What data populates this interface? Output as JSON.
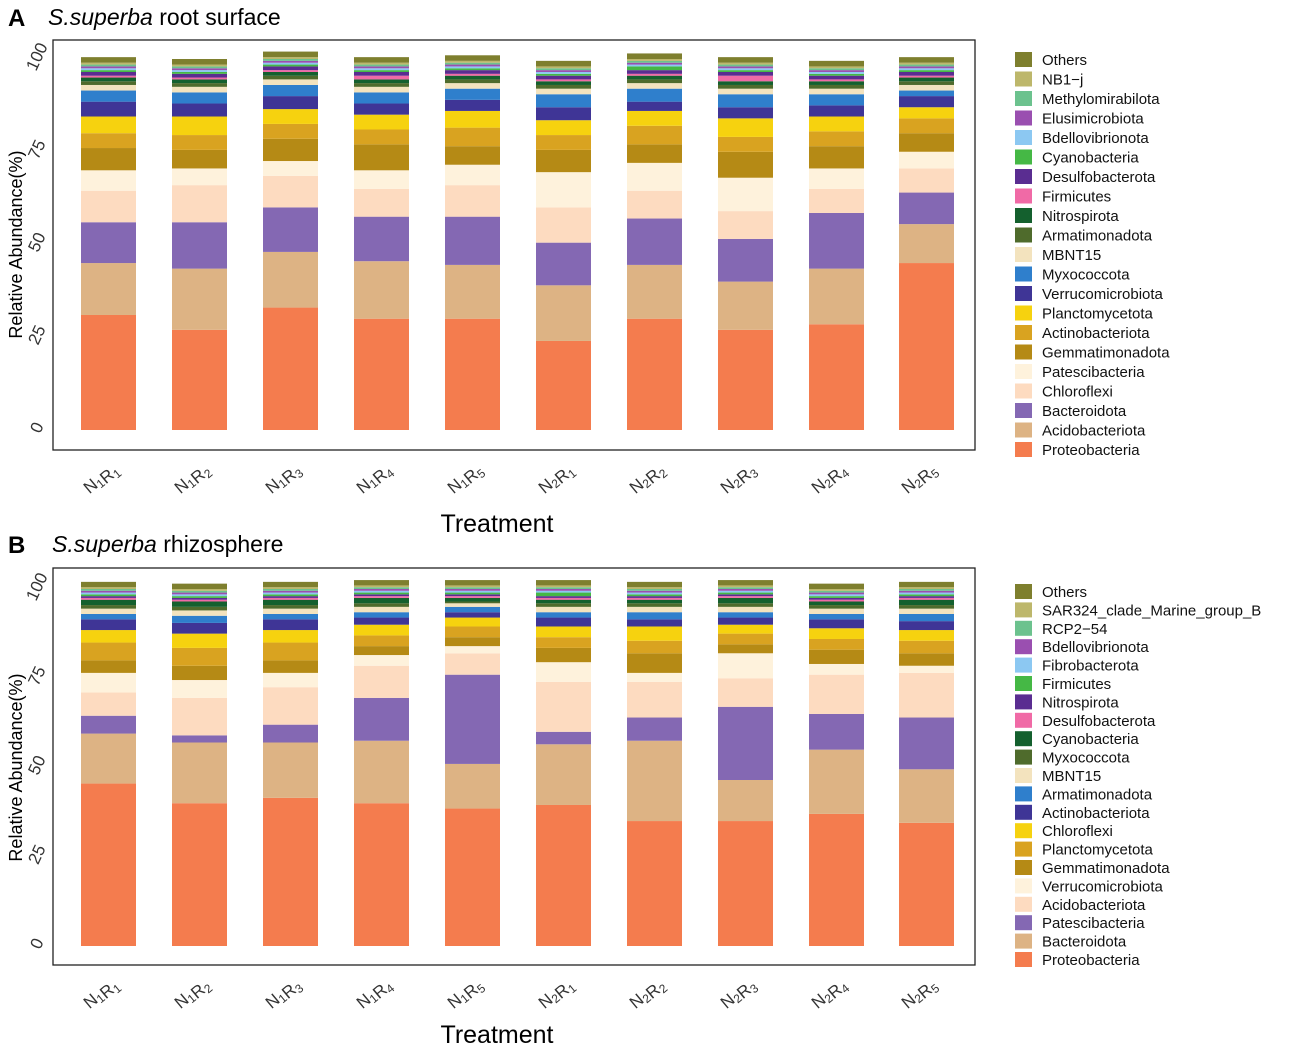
{
  "chart_data": [
    {
      "type": "bar",
      "stacked": true,
      "panel": "A",
      "title_italic": "S.superba",
      "title_rest": " root surface",
      "xlabel": "Treatment",
      "ylabel": "Relative Abundance(%)",
      "ylim": [
        0,
        100
      ],
      "yticks": [
        "0",
        "25",
        "50",
        "75",
        "100"
      ],
      "categories": [
        "N1R1",
        "N1R2",
        "N1R3",
        "N1R4",
        "N1R5",
        "N2R1",
        "N2R2",
        "N2R3",
        "N2R4",
        "N2R5"
      ],
      "series": [
        {
          "name": "Proteobacteria",
          "color": "#F47C4E",
          "values": [
            31,
            27,
            33,
            30,
            30,
            24,
            30,
            27,
            28.5,
            45
          ]
        },
        {
          "name": "Acidobacteriota",
          "color": "#DDB384",
          "values": [
            14,
            16.5,
            15,
            15.5,
            14.5,
            15,
            14.5,
            13,
            15,
            10.5
          ]
        },
        {
          "name": "Bacteroidota",
          "color": "#8468B3",
          "values": [
            11,
            12.5,
            12,
            12,
            13,
            11.5,
            12.5,
            11.5,
            15,
            8.5
          ]
        },
        {
          "name": "Chloroflexi",
          "color": "#FDDBC0",
          "values": [
            8.5,
            10,
            8.5,
            7.5,
            8.5,
            9.5,
            7.5,
            7.5,
            6.5,
            6.5
          ]
        },
        {
          "name": "Patescibacteria",
          "color": "#FEF2DC",
          "values": [
            5.5,
            4.5,
            4,
            5,
            5.5,
            9.5,
            7.5,
            9,
            5.5,
            4.5
          ]
        },
        {
          "name": "Gemmatimonadota",
          "color": "#B58A15",
          "values": [
            6,
            5,
            6,
            7,
            5,
            6,
            5,
            7,
            6,
            5
          ]
        },
        {
          "name": "Actinobacteriota",
          "color": "#D9A320",
          "values": [
            4,
            4,
            4,
            4,
            5,
            4,
            5,
            4,
            4,
            4
          ]
        },
        {
          "name": "Planctomycetota",
          "color": "#F6D20F",
          "values": [
            4.5,
            5,
            4,
            4,
            4.5,
            4,
            4,
            5,
            4,
            3
          ]
        },
        {
          "name": "Verrucomicrobiota",
          "color": "#3F3596",
          "values": [
            4,
            3.5,
            3.5,
            3,
            3,
            3.5,
            2.5,
            3,
            3,
            3
          ]
        },
        {
          "name": "Myxococcota",
          "color": "#2F7FCC",
          "values": [
            3,
            3,
            3,
            3,
            3,
            3.5,
            3.5,
            3.5,
            3,
            1.5
          ]
        },
        {
          "name": "MBNT15",
          "color": "#F3E3BE",
          "values": [
            1.5,
            1.5,
            1.5,
            1.5,
            1.5,
            1.5,
            1.5,
            1.5,
            1.5,
            1.5
          ]
        },
        {
          "name": "Armatimonadota",
          "color": "#4F6B2C",
          "values": [
            1,
            1,
            1,
            1,
            1,
            1,
            1,
            1,
            1,
            1
          ]
        },
        {
          "name": "Nitrospirota",
          "color": "#14602E",
          "values": [
            1,
            1,
            1,
            1,
            1,
            1,
            1,
            1,
            1,
            1
          ]
        },
        {
          "name": "Firmicutes",
          "color": "#F06AA6",
          "values": [
            0.5,
            0.5,
            0.5,
            1,
            0.5,
            0.5,
            0.5,
            1.5,
            0.5,
            0.5
          ]
        },
        {
          "name": "Desulfobacterota",
          "color": "#5A2D91",
          "values": [
            1,
            1,
            1,
            1,
            1,
            1,
            1,
            1,
            1,
            1
          ]
        },
        {
          "name": "Cyanobacteria",
          "color": "#45B845",
          "values": [
            0.5,
            0.5,
            0.5,
            0.5,
            0.5,
            0.5,
            1,
            0.5,
            0.5,
            0.5
          ]
        },
        {
          "name": "Bdellovibrionota",
          "color": "#8CC8F2",
          "values": [
            0.5,
            0.5,
            0.5,
            0.5,
            0.5,
            0.5,
            0.5,
            0.5,
            0.5,
            0.5
          ]
        },
        {
          "name": "Elusimicrobiota",
          "color": "#9A4FB0",
          "values": [
            0.5,
            0.5,
            0.5,
            0.5,
            0.5,
            0.5,
            0.5,
            0.5,
            0.5,
            0.5
          ]
        },
        {
          "name": "Methylomirabilota",
          "color": "#6CC28E",
          "values": [
            0.5,
            0.5,
            0.5,
            0.5,
            0.5,
            0.5,
            0.5,
            0.5,
            0.5,
            0.5
          ]
        },
        {
          "name": "NB1−j",
          "color": "#BDB76B",
          "values": [
            0.5,
            0.5,
            0.5,
            0.5,
            0.5,
            0.5,
            0.5,
            0.5,
            0.5,
            0.5
          ]
        },
        {
          "name": "Others",
          "color": "#7E7F2E",
          "values": [
            1.5,
            1.5,
            1.5,
            1.5,
            1.5,
            1.5,
            1.5,
            1.5,
            1.5,
            1.5
          ]
        }
      ]
    },
    {
      "type": "bar",
      "stacked": true,
      "panel": "B",
      "title_italic": "S.superba",
      "title_rest": " rhizosphere",
      "xlabel": "Treatment",
      "ylabel": "Relative Abundance(%)",
      "ylim": [
        0,
        100
      ],
      "yticks": [
        "0",
        "25",
        "50",
        "75",
        "100"
      ],
      "categories": [
        "N1R1",
        "N1R2",
        "N1R3",
        "N1R4",
        "N1R5",
        "N2R1",
        "N2R2",
        "N2R3",
        "N2R4",
        "N2R5"
      ],
      "series": [
        {
          "name": "Proteobacteria",
          "color": "#F47C4E",
          "values": [
            45.5,
            40,
            41.5,
            40,
            38.5,
            39.5,
            35,
            35,
            37,
            34.5
          ]
        },
        {
          "name": "Bacteroidota",
          "color": "#DDB384",
          "values": [
            14,
            17,
            15.5,
            17.5,
            12.5,
            17,
            22.5,
            11.5,
            18,
            15
          ]
        },
        {
          "name": "Patescibacteria",
          "color": "#8468B3",
          "values": [
            5,
            2,
            5,
            12,
            25,
            3.5,
            6.5,
            20.5,
            10,
            14.5
          ]
        },
        {
          "name": "Acidobacteriota",
          "color": "#FDDBC0",
          "values": [
            6.5,
            10.5,
            10.5,
            9,
            6,
            14,
            10,
            8,
            11,
            12.5
          ]
        },
        {
          "name": "Verrucomicrobiota",
          "color": "#FEF2DC",
          "values": [
            5.5,
            5,
            4,
            3,
            2,
            5.5,
            2.5,
            7,
            3,
            2
          ]
        },
        {
          "name": "Gemmatimonadota",
          "color": "#B58A15",
          "values": [
            3.5,
            4,
            3.5,
            2.5,
            2.5,
            4,
            5.5,
            2.5,
            4,
            3.5
          ]
        },
        {
          "name": "Planctomycetota",
          "color": "#D9A320",
          "values": [
            5,
            5,
            5,
            3,
            3,
            3,
            3.5,
            3,
            3,
            3.5
          ]
        },
        {
          "name": "Chloroflexi",
          "color": "#F6D20F",
          "values": [
            3.5,
            4,
            3.5,
            3,
            2.5,
            3,
            4,
            2.5,
            3,
            3
          ]
        },
        {
          "name": "Actinobacteriota",
          "color": "#3F3596",
          "values": [
            3,
            3,
            3,
            2,
            1.5,
            2.5,
            2,
            2,
            2.5,
            2.5
          ]
        },
        {
          "name": "Armatimonadota",
          "color": "#2F7FCC",
          "values": [
            1.5,
            2,
            1.5,
            1.5,
            1.5,
            1.5,
            2,
            1.5,
            1.5,
            2
          ]
        },
        {
          "name": "MBNT15",
          "color": "#F3E3BE",
          "values": [
            1.5,
            1.5,
            1.5,
            1.5,
            1,
            1.5,
            1.5,
            1.5,
            1.5,
            1.5
          ]
        },
        {
          "name": "Myxococcota",
          "color": "#4F6B2C",
          "values": [
            1,
            1,
            1,
            1,
            0.5,
            1,
            1,
            1,
            1,
            1
          ]
        },
        {
          "name": "Cyanobacteria",
          "color": "#14602E",
          "values": [
            1.5,
            1.5,
            1.5,
            1.5,
            1,
            1,
            1,
            1.5,
            1,
            1.5
          ]
        },
        {
          "name": "Desulfobacterota",
          "color": "#F06AA6",
          "values": [
            0.5,
            0.5,
            0.5,
            0.5,
            0.5,
            0.5,
            0.5,
            0.5,
            0.5,
            0.5
          ]
        },
        {
          "name": "Nitrospirota",
          "color": "#5A2D91",
          "values": [
            0.5,
            0.5,
            0.5,
            0.5,
            0.5,
            0.5,
            0.5,
            0.5,
            0.5,
            0.5
          ]
        },
        {
          "name": "Firmicutes",
          "color": "#45B845",
          "values": [
            0.5,
            0.5,
            0.5,
            0.5,
            0.5,
            1,
            0.5,
            0.5,
            0.5,
            0.5
          ]
        },
        {
          "name": "Fibrobacterota",
          "color": "#8CC8F2",
          "values": [
            0.5,
            0.5,
            0.5,
            0.5,
            0.5,
            0.5,
            0.5,
            0.5,
            0.5,
            0.5
          ]
        },
        {
          "name": "Bdellovibrionota",
          "color": "#9A4FB0",
          "values": [
            0.5,
            0.5,
            0.5,
            0.5,
            0.5,
            0.5,
            0.5,
            0.5,
            0.5,
            0.5
          ]
        },
        {
          "name": "RCP2−54",
          "color": "#6CC28E",
          "values": [
            0.5,
            0.5,
            0.5,
            0.5,
            0.5,
            0.5,
            0.5,
            0.5,
            0.5,
            0.5
          ]
        },
        {
          "name": "SAR324_clade_Marine_group_B",
          "color": "#BDB76B",
          "values": [
            0.5,
            0.5,
            0.5,
            0.5,
            0.5,
            0.5,
            0.5,
            0.5,
            0.5,
            0.5
          ]
        },
        {
          "name": "Others",
          "color": "#7E7F2E",
          "values": [
            1.5,
            1.5,
            1.5,
            1.5,
            1.5,
            1.5,
            1.5,
            1.5,
            1.5,
            1.5
          ]
        }
      ]
    }
  ]
}
